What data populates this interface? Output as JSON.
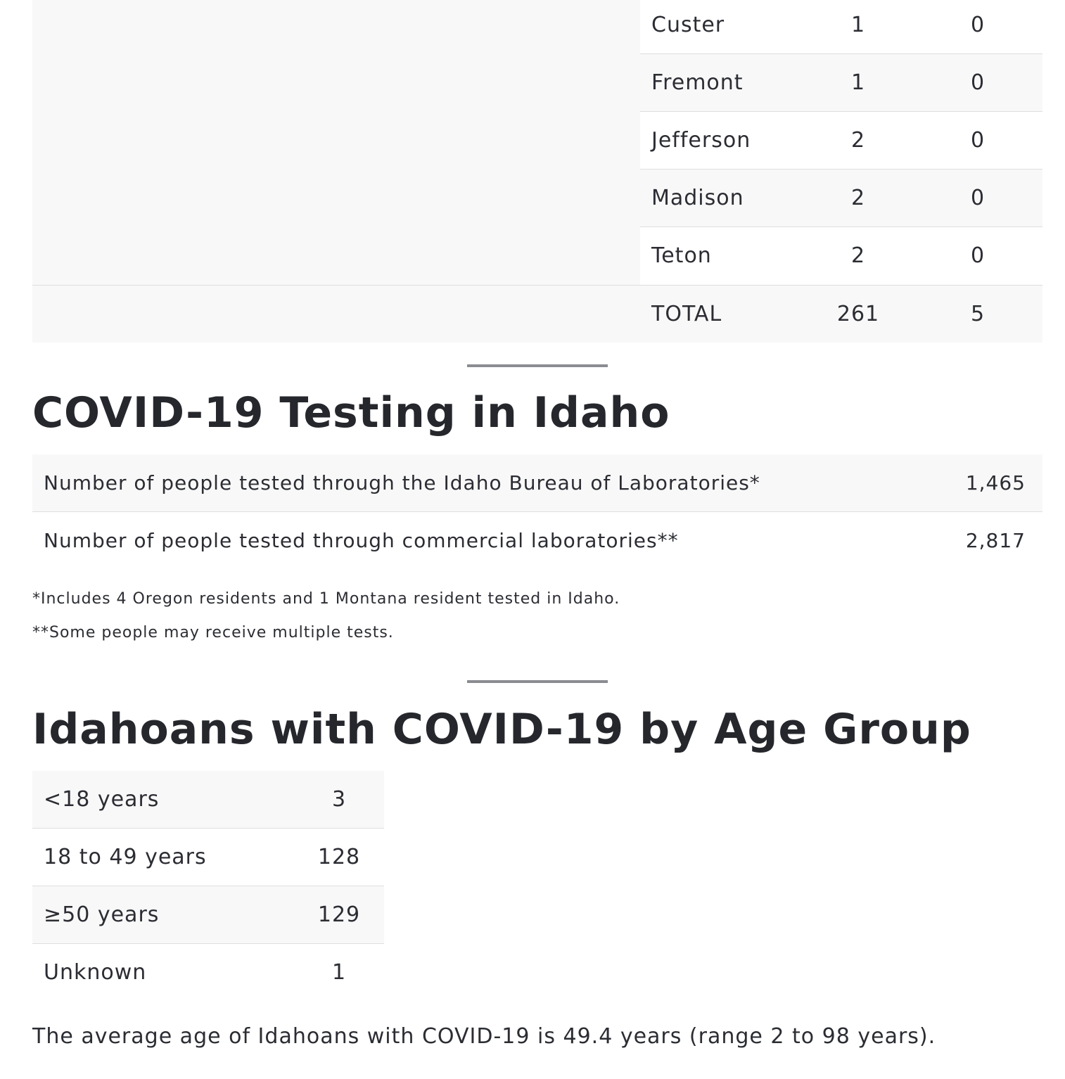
{
  "county_table": {
    "rows": [
      {
        "county": "Custer",
        "cases": "1",
        "deaths": "0"
      },
      {
        "county": "Fremont",
        "cases": "1",
        "deaths": "0"
      },
      {
        "county": "Jefferson",
        "cases": "2",
        "deaths": "0"
      },
      {
        "county": "Madison",
        "cases": "2",
        "deaths": "0"
      },
      {
        "county": "Teton",
        "cases": "2",
        "deaths": "0"
      }
    ],
    "total": {
      "label": "TOTAL",
      "cases": "261",
      "deaths": "5"
    }
  },
  "testing": {
    "title": "COVID-19 Testing in Idaho",
    "rows": [
      {
        "label": "Number of people tested through the Idaho Bureau of Laboratories*",
        "value": "1,465"
      },
      {
        "label": "Number of people tested through commercial laboratories**",
        "value": "2,817"
      }
    ],
    "footnotes": [
      "*Includes 4 Oregon residents and 1 Montana resident tested in Idaho.",
      "**Some people may receive multiple tests."
    ]
  },
  "age": {
    "title": "Idahoans with COVID-19 by Age Group",
    "rows": [
      {
        "label": "<18 years",
        "value": "3"
      },
      {
        "label": "18 to 49 years",
        "value": "128"
      },
      {
        "label": "≥50 years",
        "value": "129"
      },
      {
        "label": "Unknown",
        "value": "1"
      }
    ],
    "summary": "The average age of Idahoans with COVID-19 is 49.4 years (range 2 to 98 years)."
  }
}
